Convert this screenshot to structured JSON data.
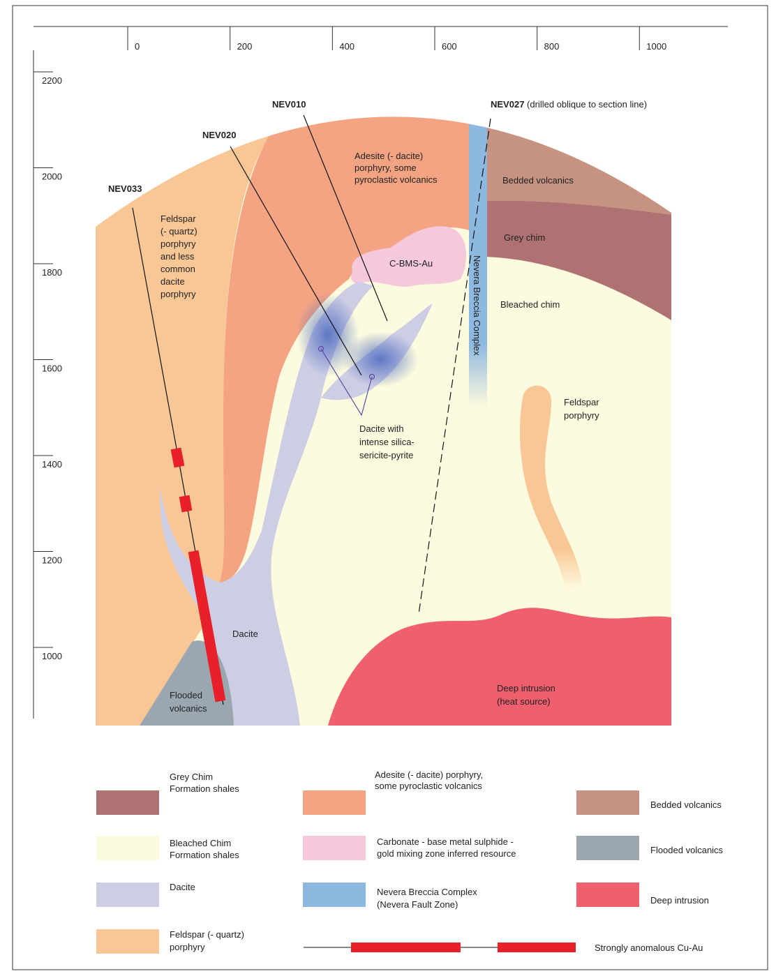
{
  "axes": {
    "x_ticks": [
      0,
      200,
      400,
      600,
      800,
      1000
    ],
    "y_ticks": [
      2200,
      2000,
      1800,
      1600,
      1400,
      1200,
      1000
    ]
  },
  "drill_holes": {
    "nev033": "NEV033",
    "nev020": "NEV020",
    "nev010": "NEV010",
    "nev027": {
      "label": "NEV027",
      "note": "(drilled oblique to section line)"
    }
  },
  "section_labels": {
    "feldspar_left": [
      "Feldspar",
      "(- quartz)",
      "porphyry",
      "and less",
      "common",
      "dacite",
      "porphyry"
    ],
    "adesite": [
      "Adesite (- dacite)",
      "porphyry, some",
      "pyroclastic volcanics"
    ],
    "bedded": "Bedded volcanics",
    "grey_chim": "Grey chim",
    "cbms": "C-BMS-Au",
    "nevera": "Nevera Breccia Complex",
    "bleached": "Bleached chim",
    "feldspar_right": [
      "Feldspar",
      "porphyry"
    ],
    "dacite_silica": [
      "Dacite with",
      "intense silica-",
      "sericite-pyrite"
    ],
    "dacite": "Dacite",
    "flooded": [
      "Flooded",
      "volcanics"
    ],
    "deep": [
      "Deep intrusion",
      "(heat source)"
    ]
  },
  "legend": {
    "grey_chim": [
      "Grey Chim",
      "Formation shales"
    ],
    "adesite": [
      "Adesite (- dacite) porphyry,",
      "some pyroclastic volcanics"
    ],
    "bedded": [
      "Bedded volcanics"
    ],
    "bleached": [
      "Bleached Chim",
      "Formation shales"
    ],
    "cbms": [
      "Carbonate - base metal sulphide -",
      "gold mixing zone inferred resource"
    ],
    "flooded": [
      "Flooded volcanics"
    ],
    "dacite": [
      "Dacite"
    ],
    "nevera": [
      "Nevera Breccia Complex",
      "(Nevera Fault Zone)"
    ],
    "deep": [
      "Deep intrusion"
    ],
    "feldspar": [
      "Feldspar (- quartz)",
      "porphyry"
    ],
    "anomalous": [
      "Strongly anomalous Cu-Au"
    ]
  }
}
